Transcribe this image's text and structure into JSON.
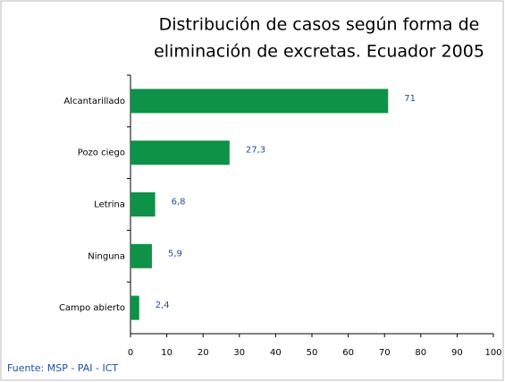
{
  "chart_data": {
    "type": "barh",
    "title": [
      "Distribución de casos según forma de",
      "eliminación de excretas. Ecuador 2005"
    ],
    "categories": [
      "Alcantarillado",
      "Pozo ciego",
      "Letrina",
      "Ninguna",
      "Campo abierto"
    ],
    "values": [
      71,
      27.3,
      6.8,
      5.9,
      2.4
    ],
    "value_labels": [
      "71",
      "27,3",
      "6,8",
      "5,9",
      "2,4"
    ],
    "color": "#0e9247",
    "xlim": [
      0,
      100
    ],
    "xticks": [
      0,
      10,
      20,
      30,
      40,
      50,
      60,
      70,
      80,
      90,
      100
    ],
    "source": "Fuente: MSP - PAI - ICT"
  }
}
